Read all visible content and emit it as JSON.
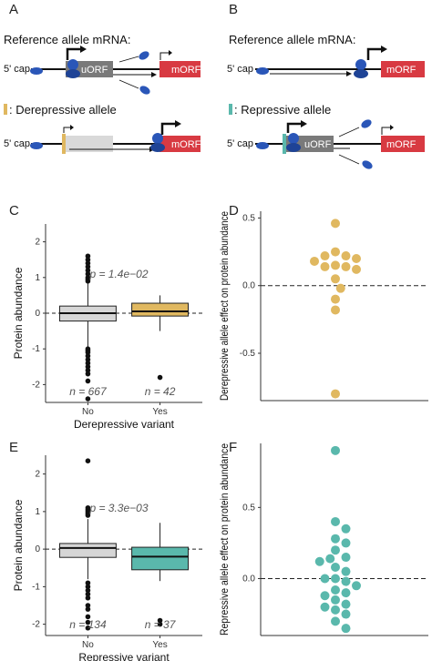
{
  "panel_a": {
    "letter": "A",
    "ref_title": "Reference allele mRNA:",
    "cap": "5' cap",
    "uorf": "uORF",
    "morf": "mORF",
    "allele_label": ": Derepressive allele",
    "cap2": "5' cap",
    "morf2": "mORF"
  },
  "panel_b": {
    "letter": "B",
    "ref_title": "Reference allele mRNA:",
    "cap": "5' cap",
    "morf": "mORF",
    "allele_label": ": Repressive allele",
    "cap2": "5' cap",
    "uorf": "uORF",
    "morf2": "mORF"
  },
  "colors": {
    "derepressive": "#e0b860",
    "repressive": "#5ab8ac",
    "ribosome": "#2a56b8",
    "morf_red": "#d83a42",
    "uorf_grey": "#7a7a7a"
  },
  "chart_data": [
    {
      "panel": "C",
      "type": "box",
      "ylabel": "Protein abundance",
      "xlabel": "Derepressive variant",
      "ylim": [
        -2.5,
        2.5
      ],
      "yticks": [
        "2",
        "1",
        "0",
        "-1",
        "-2"
      ],
      "categories": [
        "No",
        "Yes"
      ],
      "pvalue": "p = 1.4e−02",
      "counts": [
        "n = 667",
        "n = 42"
      ],
      "boxes": [
        {
          "name": "No",
          "q1": -0.22,
          "median": 0.0,
          "q3": 0.2,
          "whisker_low": -0.95,
          "whisker_high": 0.85,
          "outliers": [
            1.6,
            1.5,
            1.4,
            1.3,
            1.2,
            1.1,
            1.0,
            0.95,
            0.9,
            -1.0,
            -1.05,
            -1.1,
            -1.2,
            -1.3,
            -1.4,
            -1.5,
            -1.6,
            -1.7,
            -1.9,
            -2.4
          ]
        },
        {
          "name": "Yes",
          "q1": -0.08,
          "median": 0.05,
          "q3": 0.28,
          "whisker_low": -0.5,
          "whisker_high": 0.5,
          "outliers": [
            -1.8
          ]
        }
      ]
    },
    {
      "panel": "D",
      "type": "scatter",
      "ylabel": "Derepressive allele effect on protein abundance",
      "ylim": [
        -0.85,
        0.55
      ],
      "yticks": [
        "0.5",
        "0.0",
        "-0.5"
      ],
      "values": [
        0.46,
        0.25,
        0.22,
        0.22,
        0.2,
        0.18,
        0.15,
        0.14,
        0.14,
        0.12,
        0.05,
        -0.02,
        -0.1,
        -0.18,
        -0.8
      ]
    },
    {
      "panel": "E",
      "type": "box",
      "ylabel": "Protein abundance",
      "xlabel": "Repressive variant",
      "ylim": [
        -2.3,
        2.5
      ],
      "yticks": [
        "2",
        "1",
        "0",
        "-1",
        "-2"
      ],
      "categories": [
        "No",
        "Yes"
      ],
      "pvalue": "p = 3.3e−03",
      "counts": [
        "n = 134",
        "n = 37"
      ],
      "boxes": [
        {
          "name": "No",
          "q1": -0.22,
          "median": 0.03,
          "q3": 0.15,
          "whisker_low": -0.8,
          "whisker_high": 0.8,
          "outliers": [
            2.35,
            1.1,
            1.05,
            1.0,
            0.95,
            0.9,
            -0.9,
            -1.0,
            -1.1,
            -1.2,
            -1.3,
            -1.5,
            -1.6,
            -1.8,
            -1.95,
            -2.1
          ]
        },
        {
          "name": "Yes",
          "q1": -0.55,
          "median": -0.2,
          "q3": 0.05,
          "whisker_low": -0.85,
          "whisker_high": 0.7,
          "outliers": [
            -1.9,
            -2.0
          ]
        }
      ]
    },
    {
      "panel": "F",
      "type": "scatter",
      "ylabel": "Repressive allele effect on protein abundance",
      "ylim": [
        -0.4,
        0.95
      ],
      "yticks": [
        "0.5",
        "0.0"
      ],
      "values": [
        0.9,
        0.4,
        0.35,
        0.28,
        0.25,
        0.2,
        0.15,
        0.14,
        0.12,
        0.08,
        0.05,
        0.0,
        0.0,
        -0.02,
        -0.05,
        -0.08,
        -0.1,
        -0.12,
        -0.15,
        -0.18,
        -0.2,
        -0.22,
        -0.25,
        -0.3,
        -0.35
      ]
    }
  ]
}
